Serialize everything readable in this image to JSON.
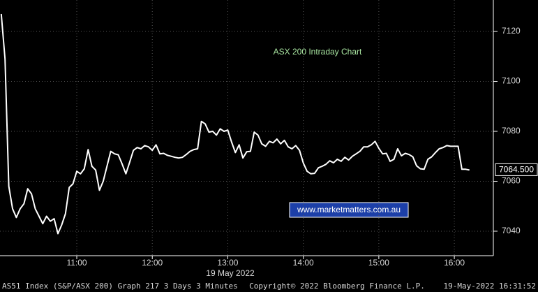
{
  "chart_data": {
    "type": "line",
    "annotation": "ASX 200 Intraday Chart",
    "watermark": "www.marketmatters.com.au",
    "x_axis_label": "19 May 2022",
    "footer": {
      "left": "AS51 Index (S&P/ASX 200) Graph 217 3 Days 3 Minutes",
      "center": "Copyright© 2022 Bloomberg Finance L.P.",
      "right": "19-May-2022 16:31:52"
    },
    "last_price": {
      "value": 7064.5,
      "label": "7064.500"
    },
    "x": [
      600,
      603,
      606,
      609,
      612,
      615,
      618,
      621,
      624,
      627,
      630,
      633,
      636,
      639,
      642,
      645,
      648,
      651,
      654,
      657,
      660,
      663,
      666,
      669,
      672,
      675,
      678,
      681,
      684,
      687,
      690,
      693,
      696,
      699,
      702,
      705,
      708,
      711,
      714,
      717,
      720,
      723,
      726,
      729,
      732,
      735,
      738,
      741,
      744,
      747,
      750,
      753,
      756,
      759,
      762,
      765,
      768,
      771,
      774,
      777,
      780,
      783,
      786,
      789,
      792,
      795,
      798,
      801,
      804,
      807,
      810,
      813,
      816,
      819,
      822,
      825,
      828,
      831,
      834,
      837,
      840,
      843,
      846,
      849,
      852,
      855,
      858,
      861,
      864,
      867,
      870,
      873,
      876,
      879,
      882,
      885,
      888,
      891,
      894,
      897,
      900,
      903,
      906,
      909,
      912,
      915,
      918,
      921,
      924,
      927,
      930,
      933,
      936,
      939,
      942,
      945,
      948,
      951,
      954,
      957,
      960,
      963,
      966,
      969,
      972
    ],
    "series": [
      {
        "color": "#ffffff",
        "values": [
          7127,
          7109,
          7058,
          7049,
          7045.5,
          7049,
          7051,
          7057,
          7055,
          7049,
          7046,
          7043,
          7046,
          7044,
          7045,
          7039,
          7042.5,
          7047,
          7057.5,
          7059,
          7064,
          7063,
          7065,
          7072.7,
          7066,
          7064.5,
          7056.4,
          7060,
          7066,
          7072,
          7071,
          7070.6,
          7067,
          7063,
          7067.6,
          7072.4,
          7073.5,
          7073,
          7074.3,
          7073.8,
          7072.4,
          7074.6,
          7071,
          7071.2,
          7070.4,
          7070,
          7069.6,
          7069.3,
          7069.6,
          7070.7,
          7072,
          7072.7,
          7073,
          7084,
          7083,
          7079.7,
          7080,
          7078.5,
          7081,
          7080,
          7080.5,
          7075.7,
          7071.5,
          7074.6,
          7069.3,
          7071.8,
          7072,
          7079.7,
          7078.5,
          7075,
          7074,
          7076,
          7075.4,
          7076.9,
          7075,
          7076.4,
          7073.8,
          7073,
          7074.3,
          7072.4,
          7067.3,
          7064,
          7063,
          7063.2,
          7065.4,
          7066,
          7066.8,
          7068.2,
          7067.4,
          7068.8,
          7068,
          7069.6,
          7068.5,
          7070,
          7071,
          7072,
          7073.8,
          7073.8,
          7074.6,
          7076,
          7073.2,
          7071,
          7071.2,
          7068,
          7068.8,
          7073,
          7070.2,
          7071.2,
          7070.7,
          7069.8,
          7066.2,
          7065,
          7064.8,
          7068.8,
          7069.8,
          7071.5,
          7073,
          7073.5,
          7074.3,
          7074,
          7074,
          7074,
          7064.8,
          7064.8,
          7064.5
        ]
      }
    ],
    "xlim": [
      599,
      991
    ],
    "xticks": [
      {
        "value": 660,
        "label": "11:00"
      },
      {
        "value": 720,
        "label": "12:00"
      },
      {
        "value": 780,
        "label": "13:00"
      },
      {
        "value": 840,
        "label": "14:00"
      },
      {
        "value": 900,
        "label": "15:00"
      },
      {
        "value": 960,
        "label": "16:00"
      }
    ],
    "ylim": [
      7030.2,
      7132.6
    ],
    "yticks": [
      7040,
      7060,
      7080,
      7100,
      7120
    ],
    "grid": true
  }
}
